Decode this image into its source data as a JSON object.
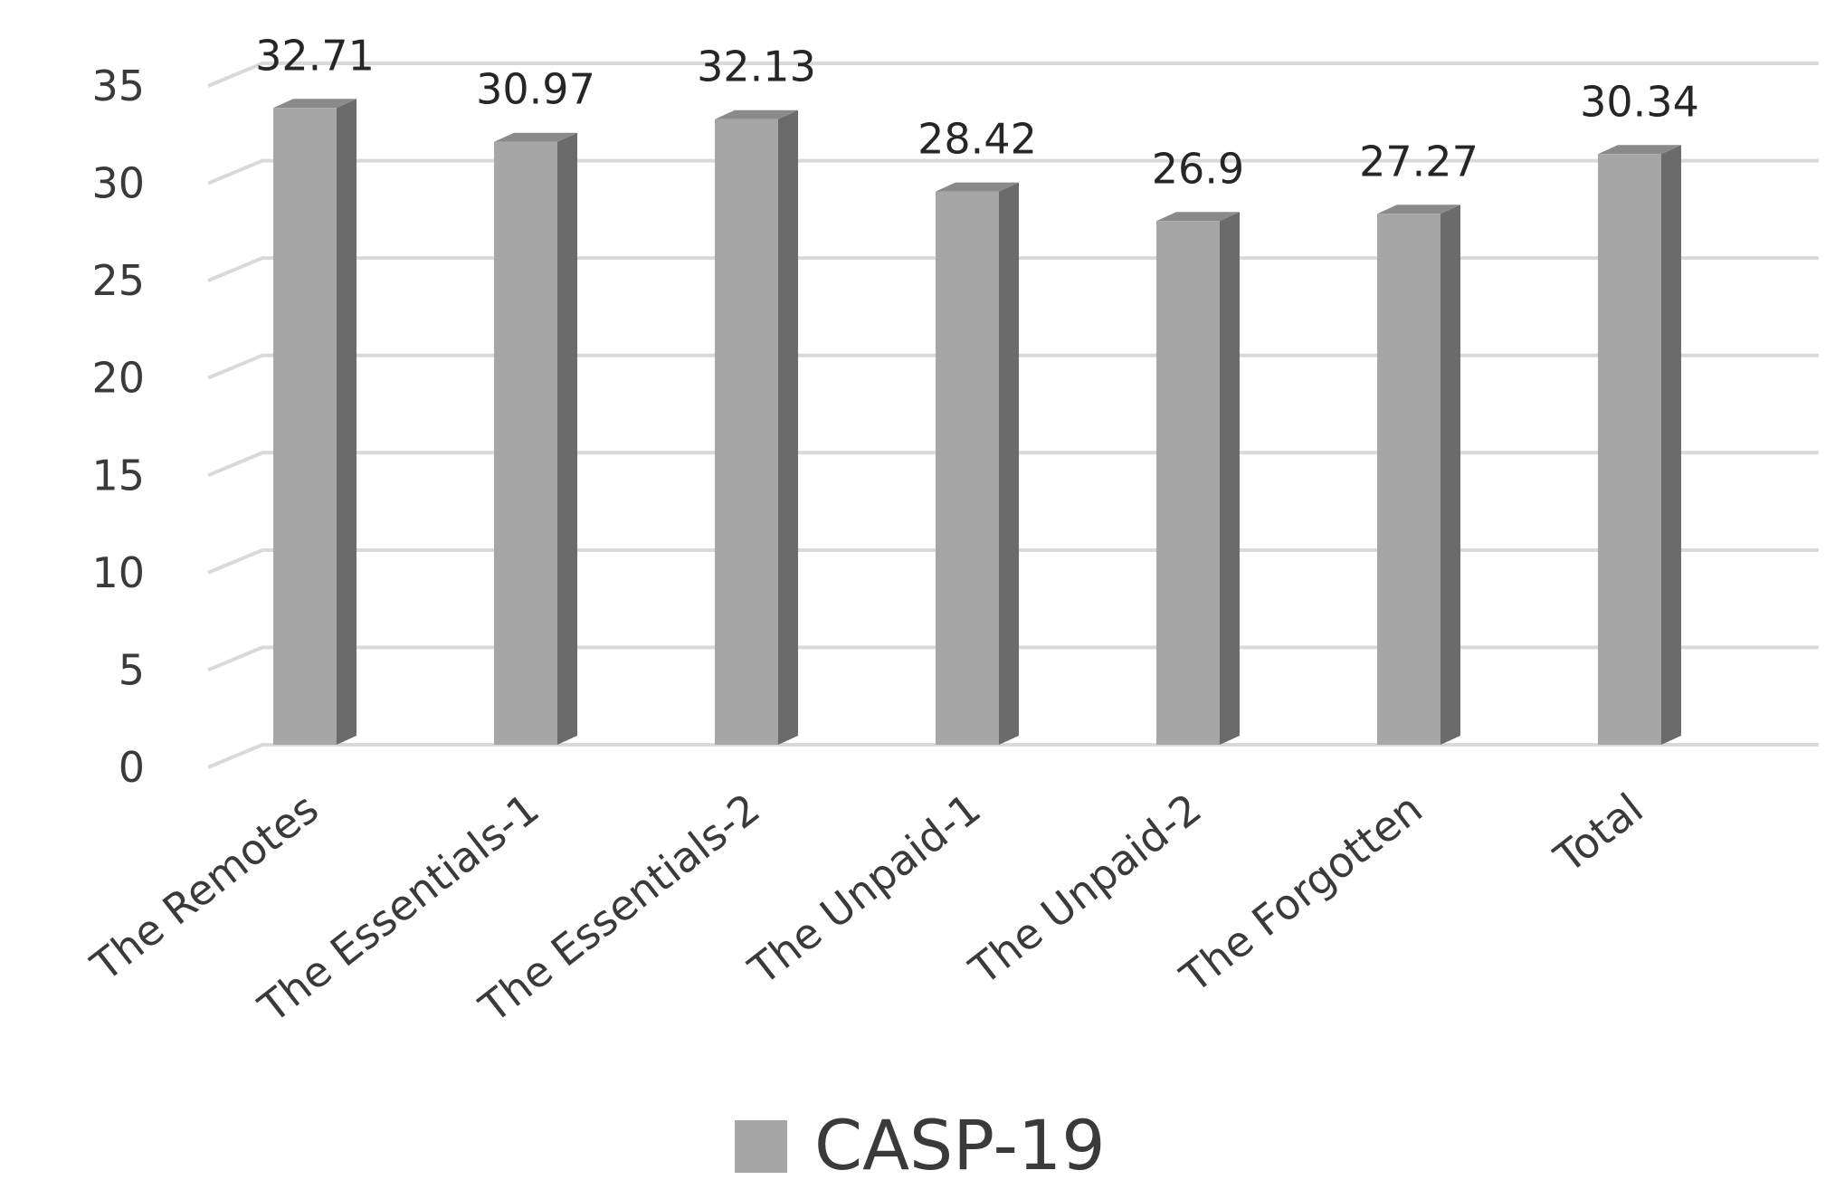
{
  "chart_data": {
    "type": "bar",
    "categories": [
      "The Remotes",
      "The Essentials-1",
      "The Essentials-2",
      "The Unpaid-1",
      "The Unpaid-2",
      "The Forgotten",
      "Total"
    ],
    "series": [
      {
        "name": "CASP-19",
        "values": [
          32.71,
          30.97,
          32.13,
          28.42,
          26.9,
          27.27,
          30.34
        ]
      }
    ],
    "data_labels": [
      "32.71",
      "30.97",
      "32.13",
      "28.42",
      "26.9",
      "27.27",
      "30.34"
    ],
    "yticks": [
      0,
      5,
      10,
      15,
      20,
      25,
      30,
      35
    ],
    "ylim": [
      0,
      35
    ],
    "style": "3d-column",
    "grid": true,
    "legend_position": "bottom",
    "colors": {
      "bar_front": "#a6a6a6",
      "bar_side": "#6b6b6b",
      "bar_top": "#8a8a8a",
      "legend_swatch": "#a6a6a6"
    }
  }
}
